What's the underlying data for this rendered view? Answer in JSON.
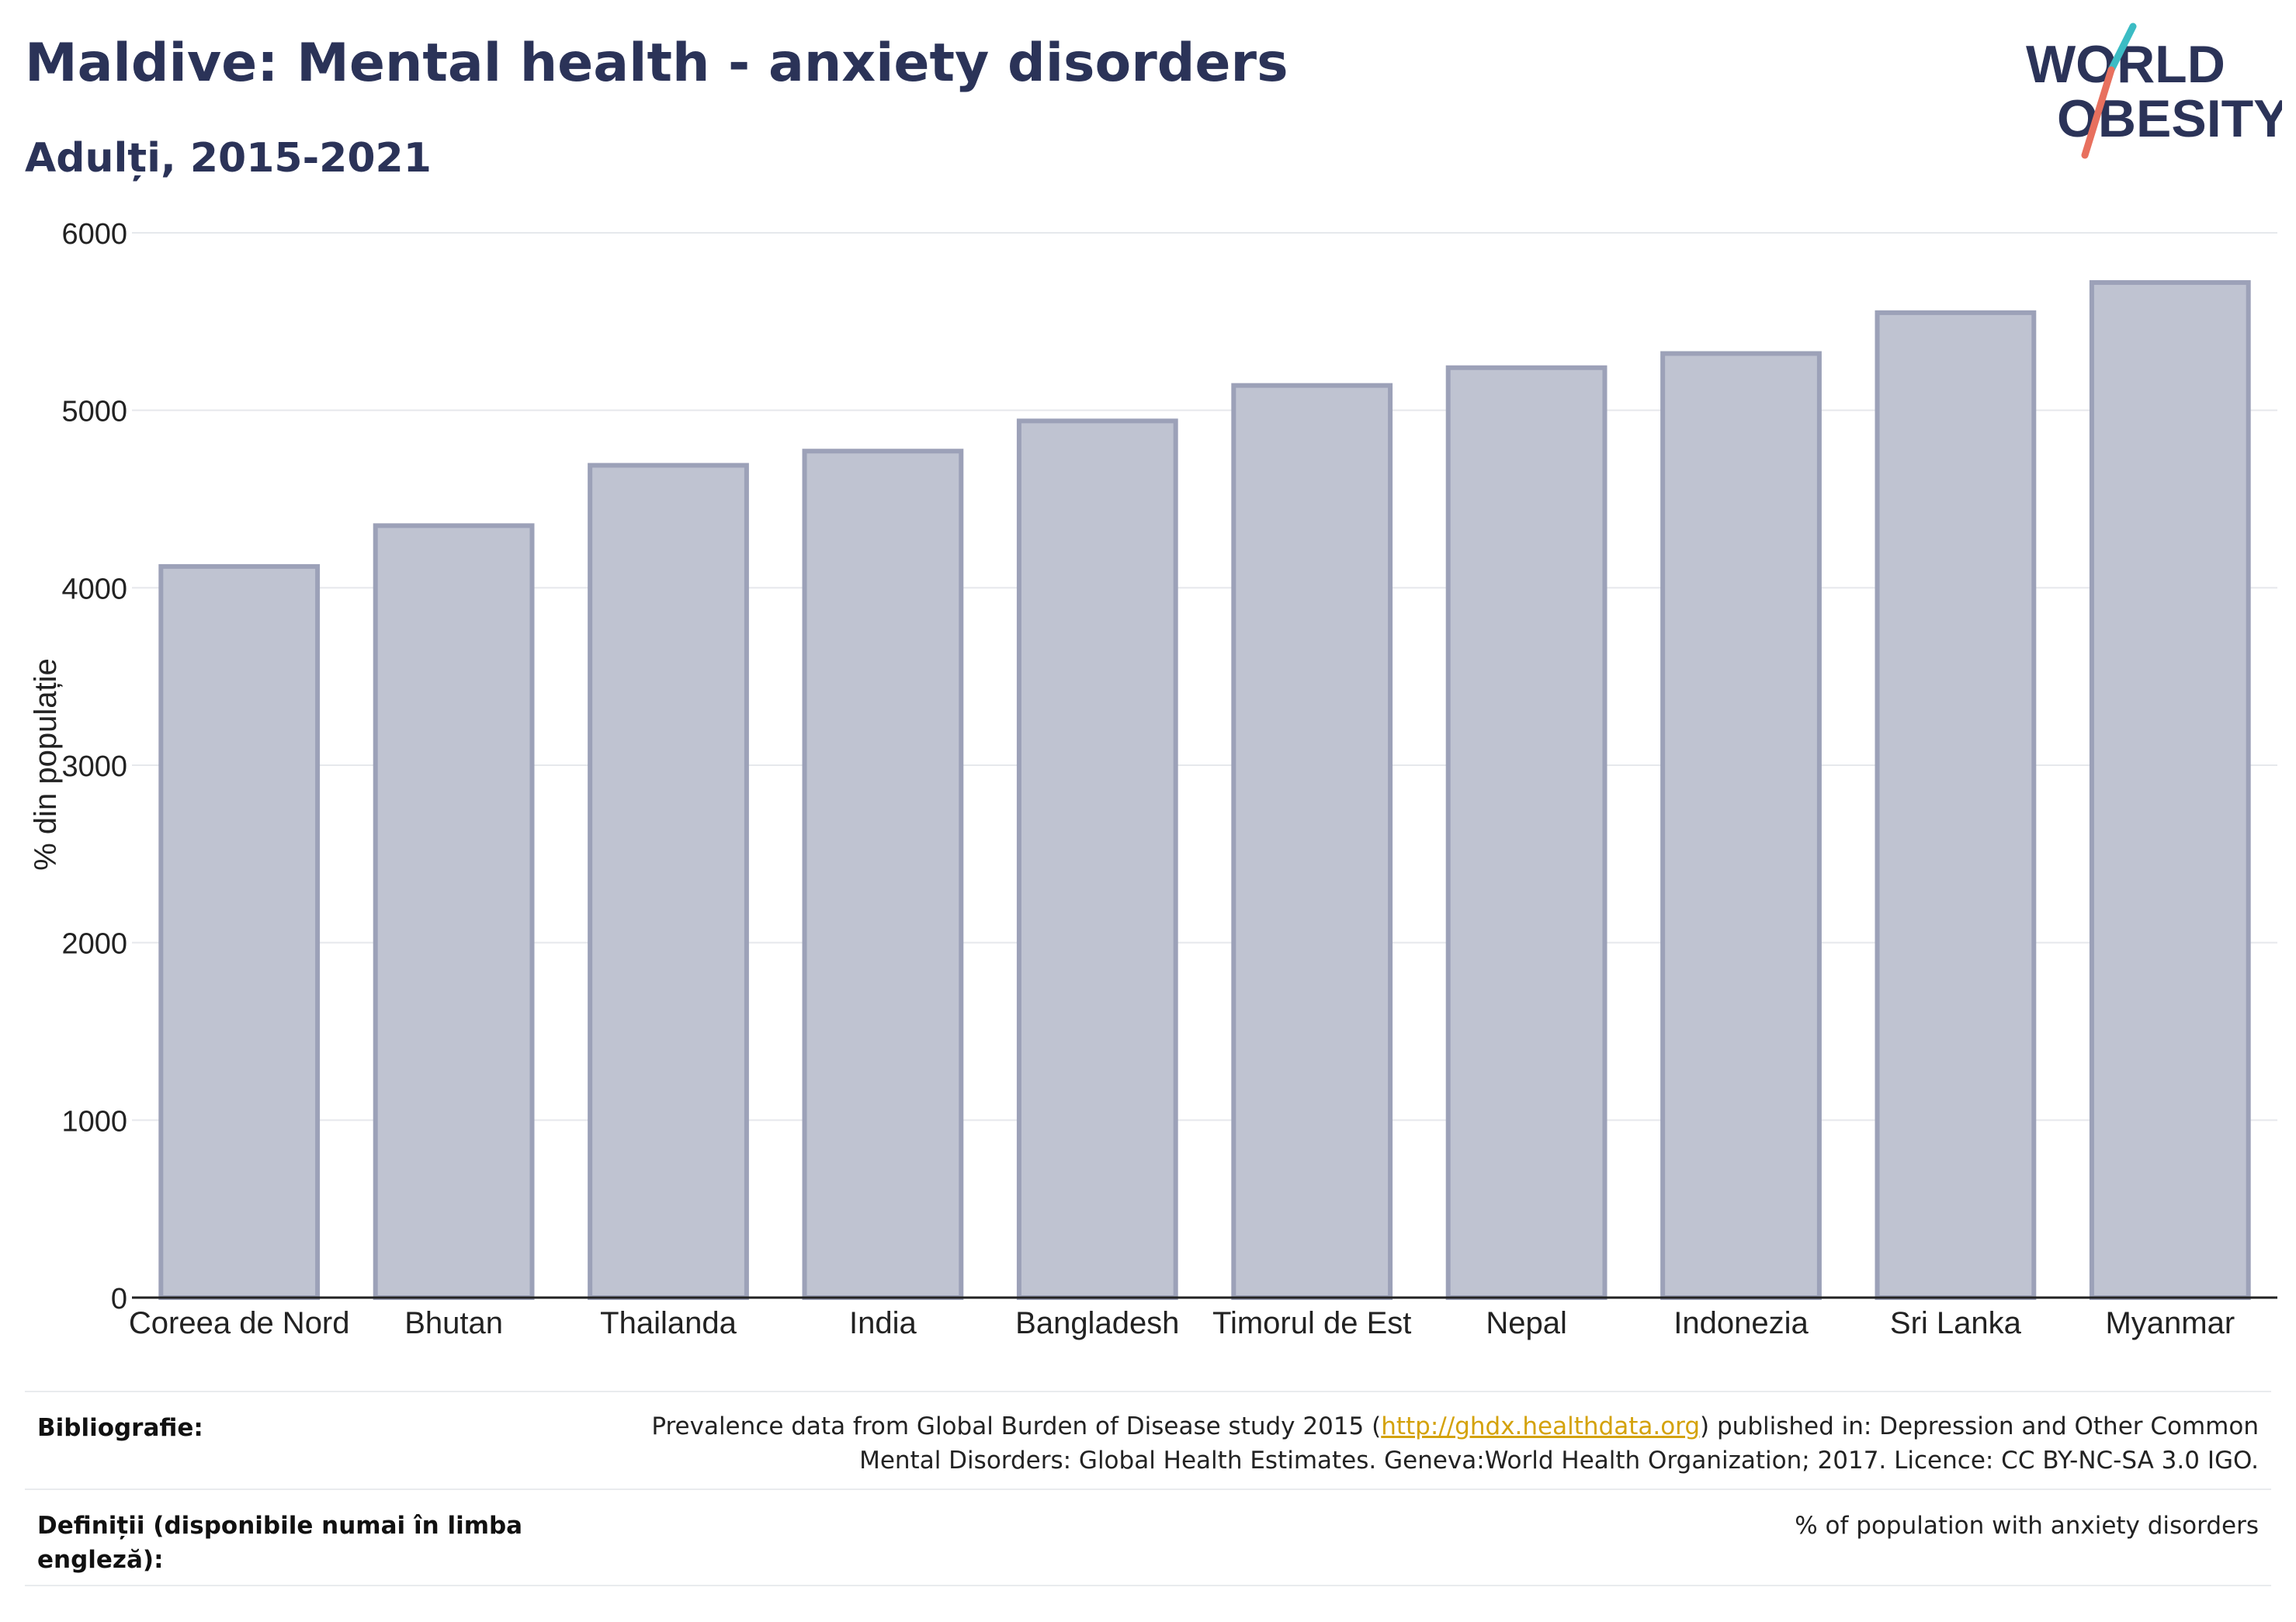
{
  "header": {
    "title": "Maldive: Mental health - anxiety disorders",
    "subtitle": "Adulți, 2015-2021"
  },
  "logo": {
    "line1": "WORLD",
    "line2": "OBESITY",
    "accent_teal": "#3bbcc4",
    "accent_coral": "#e8705e"
  },
  "colors": {
    "bar_fill": "#bfc3d1",
    "bar_stroke": "#9ca1b8",
    "text": "#2b3358",
    "grid": "#e6e8ec"
  },
  "chart_data": {
    "type": "bar",
    "title": "Maldive: Mental health - anxiety disorders",
    "subtitle": "Adulți, 2015-2021",
    "ylabel": "% din populație",
    "xlabel": "",
    "ylim": [
      0,
      6000
    ],
    "yticks": [
      0,
      1000,
      2000,
      3000,
      4000,
      5000,
      6000
    ],
    "categories": [
      "Coreea de Nord",
      "Bhutan",
      "Thailanda",
      "India",
      "Bangladesh",
      "Timorul de Est",
      "Nepal",
      "Indonezia",
      "Sri Lanka",
      "Myanmar"
    ],
    "values": [
      4120,
      4350,
      4690,
      4770,
      4940,
      5140,
      5240,
      5320,
      5550,
      5720
    ],
    "grid": true
  },
  "footer": {
    "biblio_label": "Bibliografie:",
    "biblio_pre": "Prevalence data from Global Burden of Disease study 2015 (",
    "biblio_link": "http://ghdx.healthdata.org",
    "biblio_post": ") published in: Depression and Other Common",
    "biblio_line2": "Mental Disorders: Global Health Estimates. Geneva:World Health Organization; 2017. Licence: CC BY-NC-SA 3.0 IGO.",
    "def_label_line1": "Definiții (disponibile numai în limba",
    "def_label_line2": "engleză):",
    "def_text": "% of population with anxiety disorders"
  }
}
